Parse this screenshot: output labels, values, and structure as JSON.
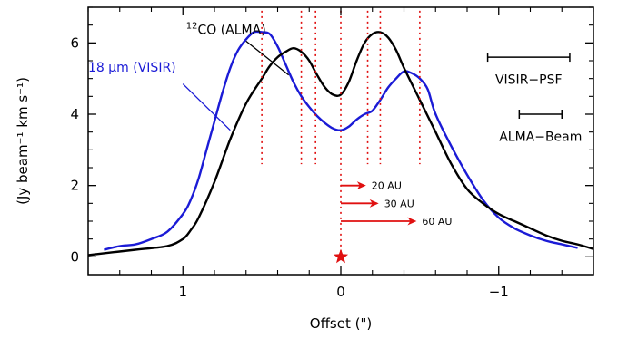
{
  "chart_data": {
    "type": "line",
    "xlabel": "Offset (\")",
    "ylabel": "(Jy beam⁻¹ km s⁻¹)",
    "xlim": [
      1.6,
      -1.6
    ],
    "ylim": [
      -0.5,
      7.0
    ],
    "x_ticks": [
      1,
      0,
      -1
    ],
    "x_tick_labels": [
      "1",
      "0",
      "−1"
    ],
    "y_ticks": [
      0,
      2,
      4,
      6
    ],
    "y_tick_labels": [
      "0",
      "2",
      "4",
      "6"
    ],
    "series": [
      {
        "name": "12CO (ALMA)",
        "color": "#000000",
        "x": [
          1.6,
          1.3,
          1.1,
          1.0,
          0.95,
          0.9,
          0.8,
          0.7,
          0.6,
          0.5,
          0.45,
          0.4,
          0.35,
          0.3,
          0.25,
          0.2,
          0.15,
          0.1,
          0.05,
          0.0,
          -0.05,
          -0.1,
          -0.15,
          -0.2,
          -0.25,
          -0.3,
          -0.35,
          -0.4,
          -0.5,
          -0.6,
          -0.7,
          -0.8,
          -0.9,
          -1.0,
          -1.1,
          -1.2,
          -1.3,
          -1.4,
          -1.5,
          -1.6
        ],
        "y": [
          0.05,
          0.2,
          0.3,
          0.5,
          0.75,
          1.1,
          2.1,
          3.3,
          4.3,
          5.0,
          5.35,
          5.6,
          5.75,
          5.85,
          5.75,
          5.5,
          5.1,
          4.75,
          4.55,
          4.55,
          4.9,
          5.5,
          6.0,
          6.25,
          6.3,
          6.15,
          5.8,
          5.3,
          4.4,
          3.5,
          2.6,
          1.9,
          1.5,
          1.2,
          1.0,
          0.8,
          0.6,
          0.45,
          0.35,
          0.22
        ]
      },
      {
        "name": "18 μm (VISIR)",
        "color": "#1b1bd6",
        "x": [
          1.5,
          1.4,
          1.3,
          1.2,
          1.1,
          1.0,
          0.95,
          0.9,
          0.85,
          0.8,
          0.75,
          0.7,
          0.65,
          0.6,
          0.55,
          0.5,
          0.45,
          0.4,
          0.35,
          0.3,
          0.25,
          0.2,
          0.15,
          0.1,
          0.05,
          0.0,
          -0.05,
          -0.1,
          -0.15,
          -0.2,
          -0.25,
          -0.3,
          -0.35,
          -0.4,
          -0.45,
          -0.5,
          -0.55,
          -0.6,
          -0.7,
          -0.8,
          -0.9,
          -1.0,
          -1.1,
          -1.2,
          -1.3,
          -1.4,
          -1.5
        ],
        "y": [
          0.2,
          0.3,
          0.35,
          0.5,
          0.7,
          1.2,
          1.6,
          2.2,
          3.0,
          3.8,
          4.6,
          5.3,
          5.8,
          6.1,
          6.3,
          6.3,
          6.25,
          5.9,
          5.4,
          4.9,
          4.5,
          4.2,
          3.95,
          3.75,
          3.6,
          3.55,
          3.65,
          3.85,
          4.0,
          4.1,
          4.4,
          4.75,
          5.0,
          5.2,
          5.15,
          5.0,
          4.7,
          4.0,
          3.1,
          2.3,
          1.6,
          1.1,
          0.8,
          0.6,
          0.45,
          0.35,
          0.25
        ]
      }
    ],
    "vertical_lines": {
      "color": "#e01010",
      "x": [
        0.5,
        0.25,
        0.16,
        0.0,
        -0.17,
        -0.25,
        -0.5
      ],
      "y_range": [
        2.6,
        6.9
      ],
      "center_line_y_range": [
        0.0,
        6.9
      ]
    },
    "star": {
      "x": 0.0,
      "y": 0.0,
      "color": "#e01010"
    },
    "arrows": [
      {
        "label": "20 AU",
        "x_start": 0.0,
        "x_end": -0.16,
        "y": 2.0
      },
      {
        "label": "30 AU",
        "x_start": 0.0,
        "x_end": -0.24,
        "y": 1.5
      },
      {
        "label": "60 AU",
        "x_start": 0.0,
        "x_end": -0.48,
        "y": 1.0
      }
    ],
    "beams": [
      {
        "label": "VISIR−PSF",
        "x_start": -0.93,
        "x_end": -1.45,
        "y": 5.6,
        "label_y": 4.85
      },
      {
        "label": "ALMA−Beam",
        "x_start": -1.13,
        "x_end": -1.4,
        "y": 4.0,
        "label_y": 3.25
      }
    ],
    "annotations": [
      {
        "text": "12CO (ALMA)",
        "sup": "12",
        "rest": "CO (ALMA)",
        "color": "#000000",
        "text_x": 0.98,
        "text_y": 6.25,
        "line_from": [
          0.6,
          6.05
        ],
        "line_to": [
          0.33,
          5.1
        ]
      },
      {
        "text": "18 μm (VISIR)",
        "color": "#1b1bd6",
        "text_x": 1.6,
        "text_y": 5.2,
        "line_from": [
          1.0,
          4.85
        ],
        "line_to": [
          0.7,
          3.55
        ]
      }
    ]
  }
}
